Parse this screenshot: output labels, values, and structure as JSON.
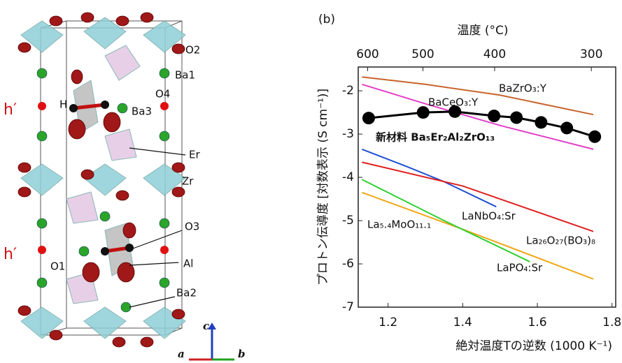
{
  "structure": {
    "labels": [
      "O2",
      "Ba1",
      "O4",
      "H",
      "Ba3",
      "h′",
      "h′",
      "Er",
      "Zr",
      "O3",
      "O1",
      "Al",
      "Ba2",
      "c",
      "a",
      "b"
    ]
  },
  "chart_data": {
    "type": "line",
    "panel": "(b)",
    "xlabel": "絶対温度Tの逆数 (1000 K⁻¹)",
    "ylabel": "プロトン伝導度 [対数表示 (S cm⁻¹)]",
    "x2label": "温度 (°C)",
    "xlim": [
      1.12,
      1.81
    ],
    "xticks": [
      1.2,
      1.4,
      1.6,
      1.8
    ],
    "ylim": [
      -7,
      -1.45
    ],
    "yticks": [
      -7,
      -6,
      -5,
      -4,
      -3,
      -2
    ],
    "x2scale": "1000/(T+273.15)",
    "x2ticks": [
      600,
      500,
      400,
      300
    ],
    "series": [
      {
        "name": "BaZrO₃:Y",
        "color": "#c8642c",
        "x": [
          1.13,
          1.3,
          1.5,
          1.75
        ],
        "values": [
          -1.68,
          -1.85,
          -2.1,
          -2.55
        ]
      },
      {
        "name": "BaCeO₃:Y",
        "color": "#e040c8",
        "x": [
          1.13,
          1.3,
          1.5,
          1.75
        ],
        "values": [
          -1.85,
          -2.3,
          -2.8,
          -3.35
        ]
      },
      {
        "name": "新材料 Ba₅Er₂Al₂ZrO₁₃",
        "color": "#000000",
        "markers": true,
        "x": [
          1.148,
          1.294,
          1.379,
          1.484,
          1.544,
          1.61,
          1.679,
          1.754
        ],
        "values": [
          -2.63,
          -2.5,
          -2.48,
          -2.58,
          -2.62,
          -2.73,
          -2.86,
          -3.06
        ]
      },
      {
        "name": "LaNbO₄:Sr",
        "color": "#2050d0",
        "x": [
          1.13,
          1.25,
          1.35,
          1.49
        ],
        "values": [
          -3.35,
          -3.75,
          -4.1,
          -4.68
        ]
      },
      {
        "name": "La₂₆O₂₇(BO₃)₈",
        "color": "#e02020",
        "x": [
          1.13,
          1.4,
          1.75
        ],
        "values": [
          -3.65,
          -4.2,
          -5.25
        ]
      },
      {
        "name": "La₅.₄MoO₁₁.₁",
        "color": "#f0a818",
        "x": [
          1.13,
          1.4,
          1.75
        ],
        "values": [
          -4.35,
          -5.2,
          -6.35
        ]
      },
      {
        "name": "LaPO₄:Sr",
        "color": "#30d030",
        "x": [
          1.13,
          1.35,
          1.58
        ],
        "values": [
          -4.05,
          -5.0,
          -5.95
        ]
      }
    ]
  }
}
